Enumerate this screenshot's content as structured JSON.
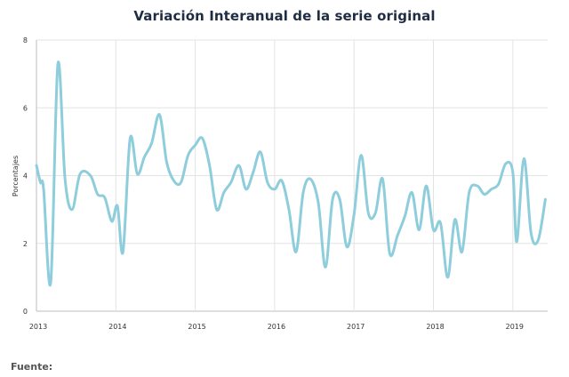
{
  "chart_data": {
    "type": "line",
    "title": "Variación Interanual de la serie original",
    "xlabel": "",
    "ylabel": "Porcentajes",
    "xlim": [
      2013.0,
      2019.42
    ],
    "ylim": [
      0,
      8
    ],
    "yticks": [
      0,
      2,
      4,
      6,
      8
    ],
    "xticks": [
      {
        "value": 2013,
        "label": "2013"
      },
      {
        "value": 2014,
        "label": "2014"
      },
      {
        "value": 2015,
        "label": "2015"
      },
      {
        "value": 2016,
        "label": "2016"
      },
      {
        "value": 2017,
        "label": "2017"
      },
      {
        "value": 2018,
        "label": "2018"
      },
      {
        "value": 2019,
        "label": "2019"
      }
    ],
    "grid": true,
    "color": "#8ecddb",
    "series": [
      {
        "name": "Variación Interanual",
        "x": [
          2013.0,
          2013.05,
          2013.09,
          2013.18,
          2013.27,
          2013.36,
          2013.45,
          2013.55,
          2013.68,
          2013.77,
          2013.86,
          2013.95,
          2014.02,
          2014.09,
          2014.18,
          2014.27,
          2014.36,
          2014.45,
          2014.55,
          2014.64,
          2014.73,
          2014.82,
          2014.91,
          2015.0,
          2015.09,
          2015.18,
          2015.27,
          2015.36,
          2015.45,
          2015.55,
          2015.64,
          2015.73,
          2015.82,
          2015.91,
          2016.0,
          2016.09,
          2016.18,
          2016.27,
          2016.36,
          2016.45,
          2016.55,
          2016.64,
          2016.73,
          2016.82,
          2016.91,
          2017.0,
          2017.09,
          2017.18,
          2017.27,
          2017.36,
          2017.45,
          2017.55,
          2017.64,
          2017.73,
          2017.82,
          2017.91,
          2018.0,
          2018.09,
          2018.18,
          2018.27,
          2018.36,
          2018.45,
          2018.55,
          2018.64,
          2018.73,
          2018.82,
          2018.91,
          2019.0,
          2019.05,
          2019.14,
          2019.23,
          2019.32,
          2019.41
        ],
        "y": [
          4.3,
          3.8,
          3.6,
          0.85,
          7.3,
          3.9,
          3.0,
          4.05,
          4.0,
          3.45,
          3.35,
          2.65,
          3.1,
          1.75,
          5.1,
          4.05,
          4.55,
          4.95,
          5.8,
          4.4,
          3.85,
          3.8,
          4.6,
          4.9,
          5.1,
          4.3,
          3.0,
          3.5,
          3.8,
          4.3,
          3.6,
          4.1,
          4.7,
          3.8,
          3.6,
          3.85,
          3.0,
          1.75,
          3.5,
          3.9,
          3.2,
          1.3,
          3.3,
          3.3,
          1.9,
          2.85,
          4.6,
          2.9,
          2.9,
          3.9,
          1.7,
          2.25,
          2.8,
          3.5,
          2.4,
          3.7,
          2.4,
          2.6,
          1.0,
          2.7,
          1.75,
          3.5,
          3.7,
          3.45,
          3.6,
          3.75,
          4.35,
          4.1,
          2.05,
          4.5,
          2.3,
          2.1,
          3.3
        ]
      }
    ]
  },
  "footer": {
    "source_label": "Fuente:"
  }
}
